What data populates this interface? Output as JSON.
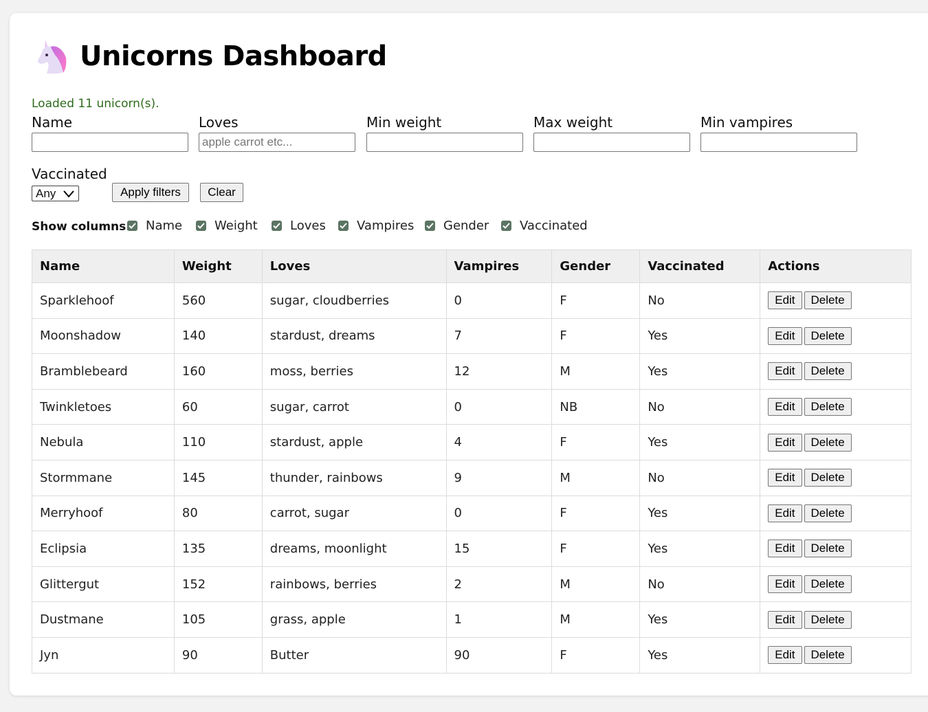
{
  "header": {
    "title": "Unicorns Dashboard",
    "logo_icon": "unicorn-icon"
  },
  "status": "Loaded 11 unicorn(s).",
  "filters": {
    "name": {
      "label": "Name",
      "value": "",
      "placeholder": ""
    },
    "loves": {
      "label": "Loves",
      "value": "",
      "placeholder": "apple carrot etc..."
    },
    "min_weight": {
      "label": "Min weight",
      "value": "",
      "placeholder": ""
    },
    "max_weight": {
      "label": "Max weight",
      "value": "",
      "placeholder": ""
    },
    "min_vampires": {
      "label": "Min vampires",
      "value": "",
      "placeholder": ""
    },
    "vaccinated": {
      "label": "Vaccinated",
      "selected": "Any"
    },
    "apply_label": "Apply filters",
    "clear_label": "Clear"
  },
  "columns_toggle": {
    "label": "Show columns:",
    "options": [
      {
        "label": "Name",
        "checked": true
      },
      {
        "label": "Weight",
        "checked": true
      },
      {
        "label": "Loves",
        "checked": true
      },
      {
        "label": "Vampires",
        "checked": true
      },
      {
        "label": "Gender",
        "checked": true
      },
      {
        "label": "Vaccinated",
        "checked": true
      }
    ]
  },
  "table": {
    "headers": [
      "Name",
      "Weight",
      "Loves",
      "Vampires",
      "Gender",
      "Vaccinated",
      "Actions"
    ],
    "edit_label": "Edit",
    "delete_label": "Delete",
    "rows": [
      [
        "Sparklehoof",
        "560",
        "sugar, cloudberries",
        "0",
        "F",
        "No"
      ],
      [
        "Moonshadow",
        "140",
        "stardust, dreams",
        "7",
        "F",
        "Yes"
      ],
      [
        "Bramblebeard",
        "160",
        "moss, berries",
        "12",
        "M",
        "Yes"
      ],
      [
        "Twinkletoes",
        "60",
        "sugar, carrot",
        "0",
        "NB",
        "No"
      ],
      [
        "Nebula",
        "110",
        "stardust, apple",
        "4",
        "F",
        "Yes"
      ],
      [
        "Stormmane",
        "145",
        "thunder, rainbows",
        "9",
        "M",
        "No"
      ],
      [
        "Merryhoof",
        "80",
        "carrot, sugar",
        "0",
        "F",
        "Yes"
      ],
      [
        "Eclipsia",
        "135",
        "dreams, moonlight",
        "15",
        "F",
        "Yes"
      ],
      [
        "Glittergut",
        "152",
        "rainbows, berries",
        "2",
        "M",
        "No"
      ],
      [
        "Dustmane",
        "105",
        "grass, apple",
        "1",
        "M",
        "Yes"
      ],
      [
        "Jyn",
        "90",
        "Butter",
        "90",
        "F",
        "Yes"
      ]
    ]
  },
  "colors": {
    "status_green": "#2e6b1d",
    "checkbox": "#5b7463",
    "header_bg": "#efefef"
  }
}
